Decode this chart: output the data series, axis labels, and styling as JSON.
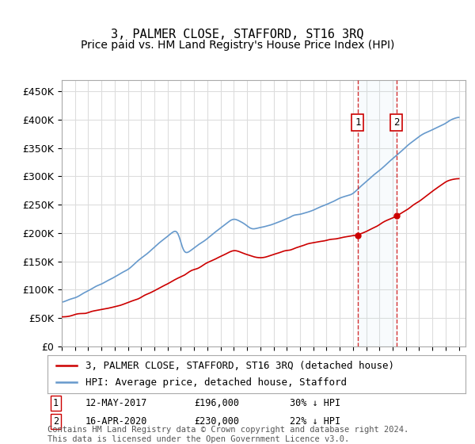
{
  "title": "3, PALMER CLOSE, STAFFORD, ST16 3RQ",
  "subtitle": "Price paid vs. HM Land Registry's House Price Index (HPI)",
  "ylabel_ticks": [
    "£0",
    "£50K",
    "£100K",
    "£150K",
    "£200K",
    "£250K",
    "£300K",
    "£350K",
    "£400K",
    "£450K"
  ],
  "ytick_values": [
    0,
    50000,
    100000,
    150000,
    200000,
    250000,
    300000,
    350000,
    400000,
    450000
  ],
  "ylim": [
    0,
    470000
  ],
  "xlim_start": 1995.0,
  "xlim_end": 2025.5,
  "vline1_x": 2017.36,
  "vline2_x": 2020.29,
  "sale1_date": "12-MAY-2017",
  "sale1_price": "£196,000",
  "sale1_hpi": "30% ↓ HPI",
  "sale2_date": "16-APR-2020",
  "sale2_price": "£230,000",
  "sale2_hpi": "22% ↓ HPI",
  "legend_label_red": "3, PALMER CLOSE, STAFFORD, ST16 3RQ (detached house)",
  "legend_label_blue": "HPI: Average price, detached house, Stafford",
  "footer": "Contains HM Land Registry data © Crown copyright and database right 2024.\nThis data is licensed under the Open Government Licence v3.0.",
  "red_color": "#cc0000",
  "blue_color": "#6699cc",
  "background_color": "#ffffff",
  "grid_color": "#dddddd",
  "title_fontsize": 11,
  "subtitle_fontsize": 10,
  "tick_fontsize": 9,
  "legend_fontsize": 9,
  "footer_fontsize": 7.5
}
